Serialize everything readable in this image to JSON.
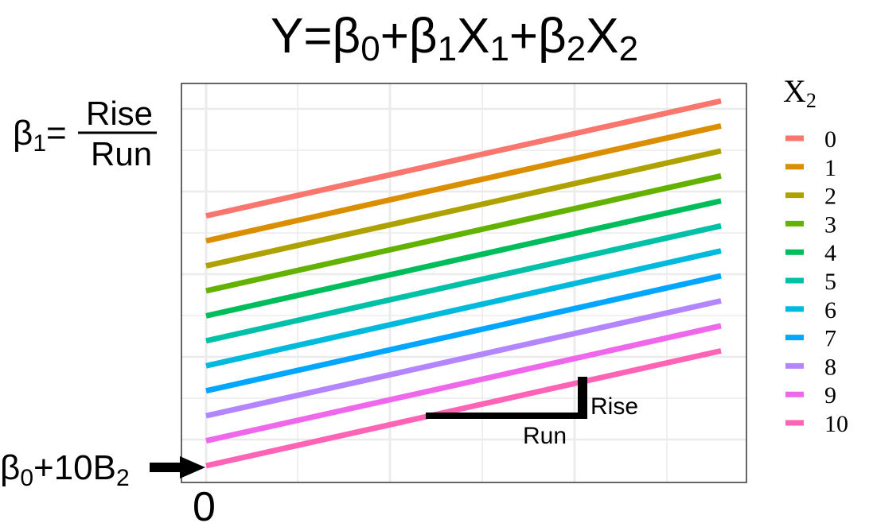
{
  "chart_data": {
    "type": "line",
    "title_parts": [
      "Y=β",
      "0",
      "+β",
      "1",
      "X",
      "1",
      "+β",
      "2",
      "X",
      "2"
    ],
    "x_tick_labels": [
      "0"
    ],
    "grid": true,
    "legend": {
      "position": "right",
      "title_main": "X",
      "title_sub": "2",
      "entries": [
        "0",
        "1",
        "2",
        "3",
        "4",
        "5",
        "6",
        "7",
        "8",
        "9",
        "10"
      ]
    },
    "series": [
      {
        "name": "0",
        "color": "#F8766D",
        "x": [
          0,
          1
        ],
        "y": [
          10,
          14.6
        ]
      },
      {
        "name": "1",
        "color": "#DB8E00",
        "x": [
          0,
          1
        ],
        "y": [
          9,
          13.6
        ]
      },
      {
        "name": "2",
        "color": "#AEA200",
        "x": [
          0,
          1
        ],
        "y": [
          8,
          12.6
        ]
      },
      {
        "name": "3",
        "color": "#64B200",
        "x": [
          0,
          1
        ],
        "y": [
          7,
          11.6
        ]
      },
      {
        "name": "4",
        "color": "#00BD5C",
        "x": [
          0,
          1
        ],
        "y": [
          6,
          10.6
        ]
      },
      {
        "name": "5",
        "color": "#00C1A7",
        "x": [
          0,
          1
        ],
        "y": [
          5,
          9.6
        ]
      },
      {
        "name": "6",
        "color": "#00BADE",
        "x": [
          0,
          1
        ],
        "y": [
          4,
          8.6
        ]
      },
      {
        "name": "7",
        "color": "#00A6FF",
        "x": [
          0,
          1
        ],
        "y": [
          3,
          7.6
        ]
      },
      {
        "name": "8",
        "color": "#B385FF",
        "x": [
          0,
          1
        ],
        "y": [
          2,
          6.6
        ]
      },
      {
        "name": "9",
        "color": "#EF67EB",
        "x": [
          0,
          1
        ],
        "y": [
          1,
          5.6
        ]
      },
      {
        "name": "10",
        "color": "#FF63B6",
        "x": [
          0,
          1
        ],
        "y": [
          0,
          4.6
        ]
      }
    ],
    "annotations": {
      "slope_label": {
        "beta": "β",
        "sub": "1",
        "eq": "=",
        "numerator": "Rise",
        "denominator": "Run"
      },
      "intercept_label": {
        "text": "β",
        "sub0": "0",
        "mid": "+10B",
        "sub2": "2"
      },
      "rise_label": "Rise",
      "run_label": "Run"
    }
  }
}
